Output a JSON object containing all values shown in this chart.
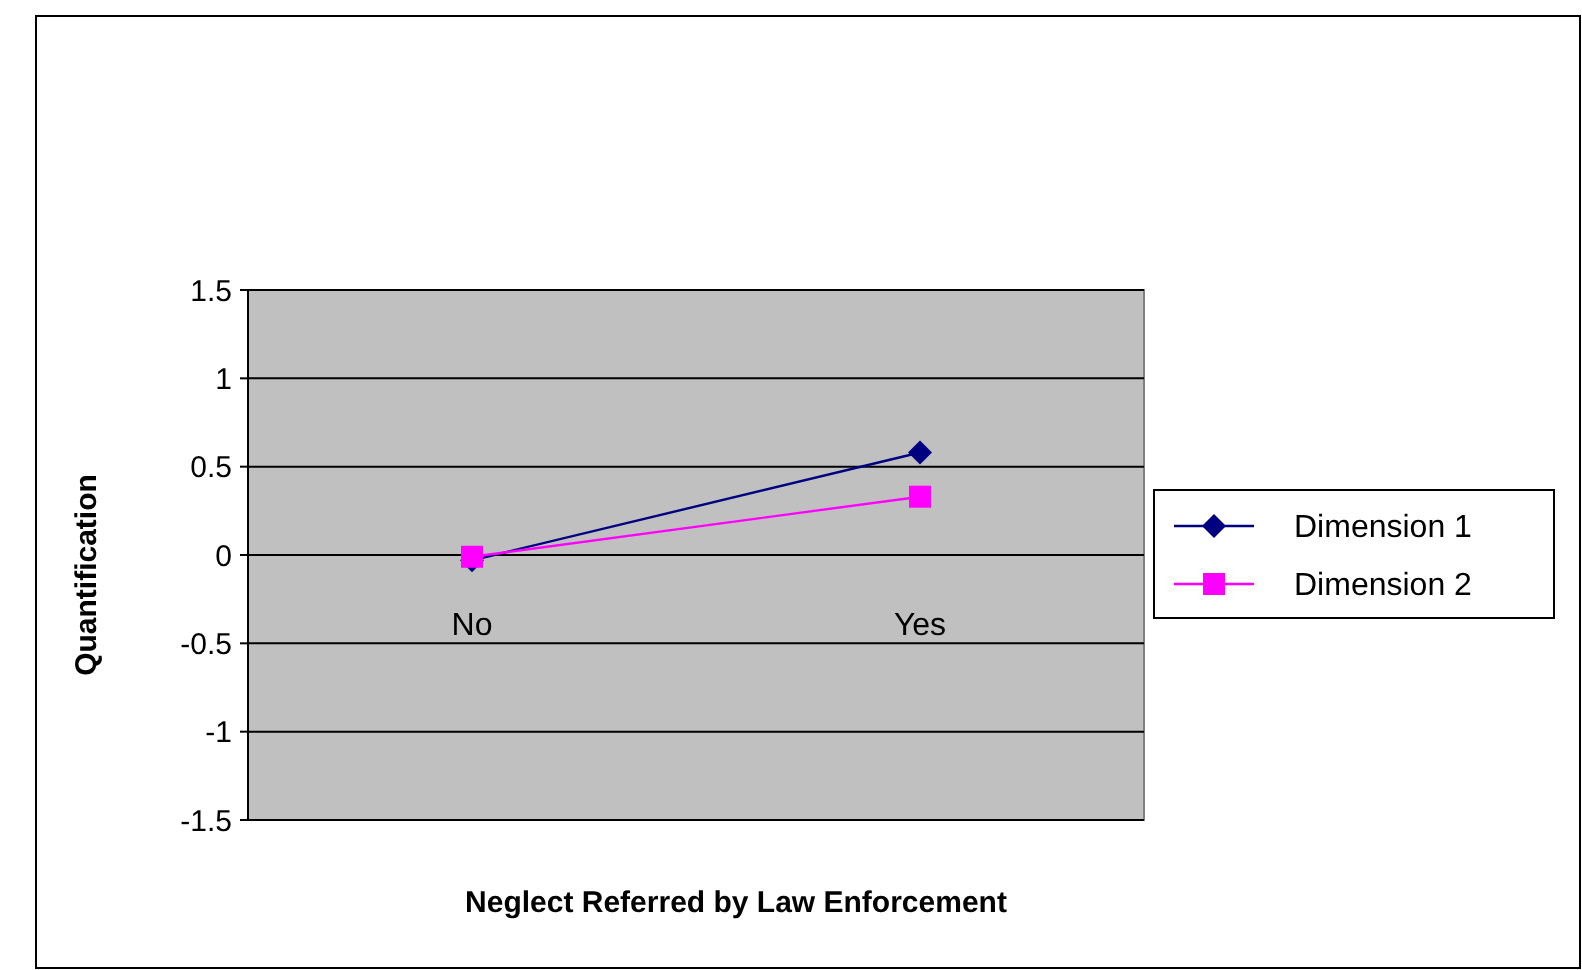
{
  "chart_data": {
    "type": "line",
    "xlabel": "Neglect Referred by Law Enforcement",
    "ylabel": "Quantification",
    "categories": [
      "No",
      "Yes"
    ],
    "series": [
      {
        "name": "Dimension 1",
        "color": "#000080",
        "values": [
          -0.03,
          0.58
        ],
        "marker": "diamond"
      },
      {
        "name": "Dimension 2",
        "color": "#ff00ff",
        "values": [
          -0.01,
          0.33
        ],
        "marker": "square"
      }
    ],
    "ylim": [
      -1.5,
      1.5
    ],
    "yticks": [
      -1.5,
      -1,
      -0.5,
      0,
      0.5,
      1,
      1.5
    ],
    "grid": "y",
    "legend": "right"
  }
}
